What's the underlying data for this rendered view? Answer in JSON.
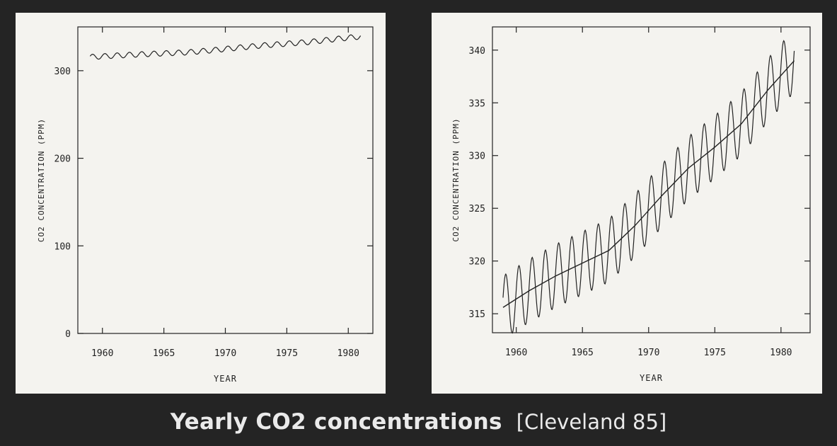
{
  "caption": {
    "title": "Yearly CO2 concentrations",
    "citation": "[Cleveland 85]"
  },
  "chart_data": [
    {
      "type": "line",
      "xlabel": "YEAR",
      "ylabel": "CO2 CONCENTRATION (PPM)",
      "xlim": [
        1958,
        1982
      ],
      "ylim": [
        0,
        350
      ],
      "xticks": [
        1960,
        1965,
        1970,
        1975,
        1980
      ],
      "yticks": [
        0,
        100,
        200,
        300
      ],
      "grid": false,
      "series": [
        {
          "kind": "monthly_seasonal",
          "x": [
            1959,
            1961,
            1963,
            1965,
            1967,
            1969,
            1971,
            1973,
            1975,
            1977,
            1979,
            1981
          ],
          "y": [
            315.6,
            317.2,
            318.6,
            319.8,
            321.0,
            323.4,
            326.2,
            328.8,
            330.8,
            333.0,
            336.2,
            339.0
          ],
          "amplitude": 3.0
        }
      ]
    },
    {
      "type": "line",
      "xlabel": "YEAR",
      "ylabel": "CO2 CONCENTRATION (PPM)",
      "xlim": [
        1958.2,
        1982.2
      ],
      "ylim": [
        313.2,
        342.2
      ],
      "xticks": [
        1960,
        1965,
        1970,
        1975,
        1980
      ],
      "yticks": [
        315,
        320,
        325,
        330,
        335,
        340
      ],
      "grid": false,
      "series": [
        {
          "kind": "monthly_seasonal",
          "x": [
            1959,
            1961,
            1963,
            1965,
            1967,
            1969,
            1971,
            1973,
            1975,
            1977,
            1979,
            1981
          ],
          "y": [
            315.6,
            317.2,
            318.6,
            319.8,
            321.0,
            323.4,
            326.2,
            328.8,
            330.8,
            333.0,
            336.2,
            339.0
          ],
          "amplitude": 3.0
        },
        {
          "kind": "smooth_trend",
          "x": [
            1959,
            1961,
            1963,
            1965,
            1967,
            1969,
            1971,
            1973,
            1975,
            1977,
            1979,
            1981
          ],
          "y": [
            315.6,
            317.2,
            318.6,
            319.8,
            321.0,
            323.4,
            326.2,
            328.8,
            330.8,
            333.0,
            336.2,
            339.0
          ]
        }
      ]
    }
  ]
}
